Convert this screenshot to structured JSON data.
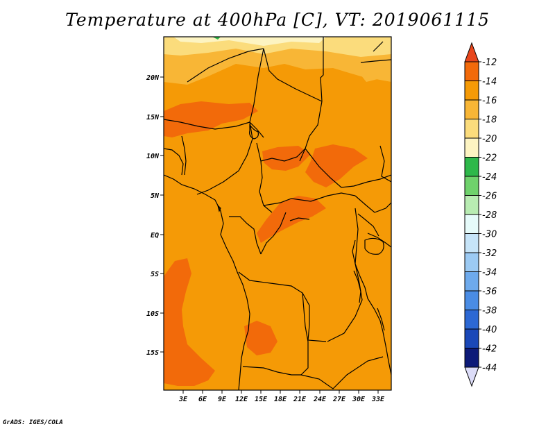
{
  "title": "Temperature at 400hPa [C], VT: 2019061115",
  "credit": "GrADS: IGES/COLA",
  "lat_ticks": [
    "20N",
    "15N",
    "10N",
    "5N",
    "EQ",
    "5S",
    "10S",
    "15S"
  ],
  "lon_ticks": [
    "3E",
    "6E",
    "9E",
    "12E",
    "15E",
    "18E",
    "21E",
    "24E",
    "27E",
    "30E",
    "33E"
  ],
  "colorbar": {
    "labels": [
      "-12",
      "-14",
      "-16",
      "-18",
      "-20",
      "-22",
      "-24",
      "-26",
      "-28",
      "-30",
      "-32",
      "-34",
      "-36",
      "-38",
      "-40",
      "-42",
      "-44"
    ],
    "colors": [
      "#e8461c",
      "#f26a0a",
      "#f59a06",
      "#f8b636",
      "#fbdc7c",
      "#fdf4c2",
      "#2eb84a",
      "#6fd26c",
      "#b8ecb2",
      "#e6fbfa",
      "#c6e4f8",
      "#9ccaf3",
      "#6eaaec",
      "#4a8ce4",
      "#2c68d4",
      "#1a48b8",
      "#0d1a78",
      "#dcdcf8"
    ]
  }
}
